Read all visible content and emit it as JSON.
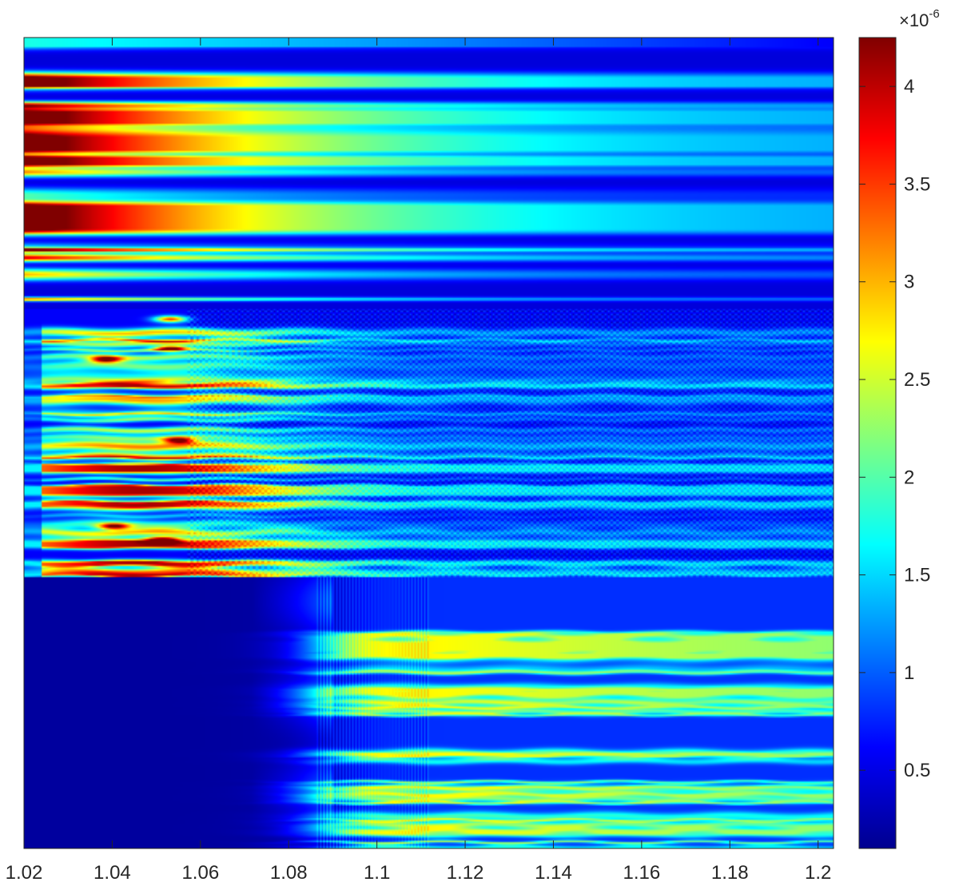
{
  "chart_data": {
    "type": "heatmap",
    "title": "",
    "xlabel": "",
    "ylabel": "",
    "x_ticks": [
      "1.02",
      "1.04",
      "1.06",
      "1.08",
      "1.1",
      "1.12",
      "1.14",
      "1.16",
      "1.18",
      "1.2"
    ],
    "x_tick_values": [
      1.02,
      1.04,
      1.06,
      1.08,
      1.1,
      1.12,
      1.14,
      1.16,
      1.18,
      1.2
    ],
    "xlim": [
      1.02,
      1.2035
    ],
    "y_ticks": [],
    "colormap": "jet",
    "colorbar": {
      "ticks": [
        "0.5",
        "1",
        "1.5",
        "2",
        "2.5",
        "3",
        "3.5",
        "4"
      ],
      "tick_values": [
        0.5,
        1,
        1.5,
        2,
        2.5,
        3,
        3.5,
        4
      ],
      "clim": [
        0.1,
        4.25
      ],
      "exponent_prefix": "×10",
      "exponent": "-6",
      "location": "right"
    },
    "regions": [
      {
        "band": "top",
        "description_values": {
          "max_at_left": 4.2,
          "decay_to_right": 0.8
        }
      },
      {
        "band": "middle",
        "description_values": {
          "max": 4.2,
          "typical": 1.5
        }
      },
      {
        "band": "bottom",
        "description_values": {
          "left_level": 0.1,
          "right_peak": 2.1
        }
      }
    ],
    "grid": false
  }
}
